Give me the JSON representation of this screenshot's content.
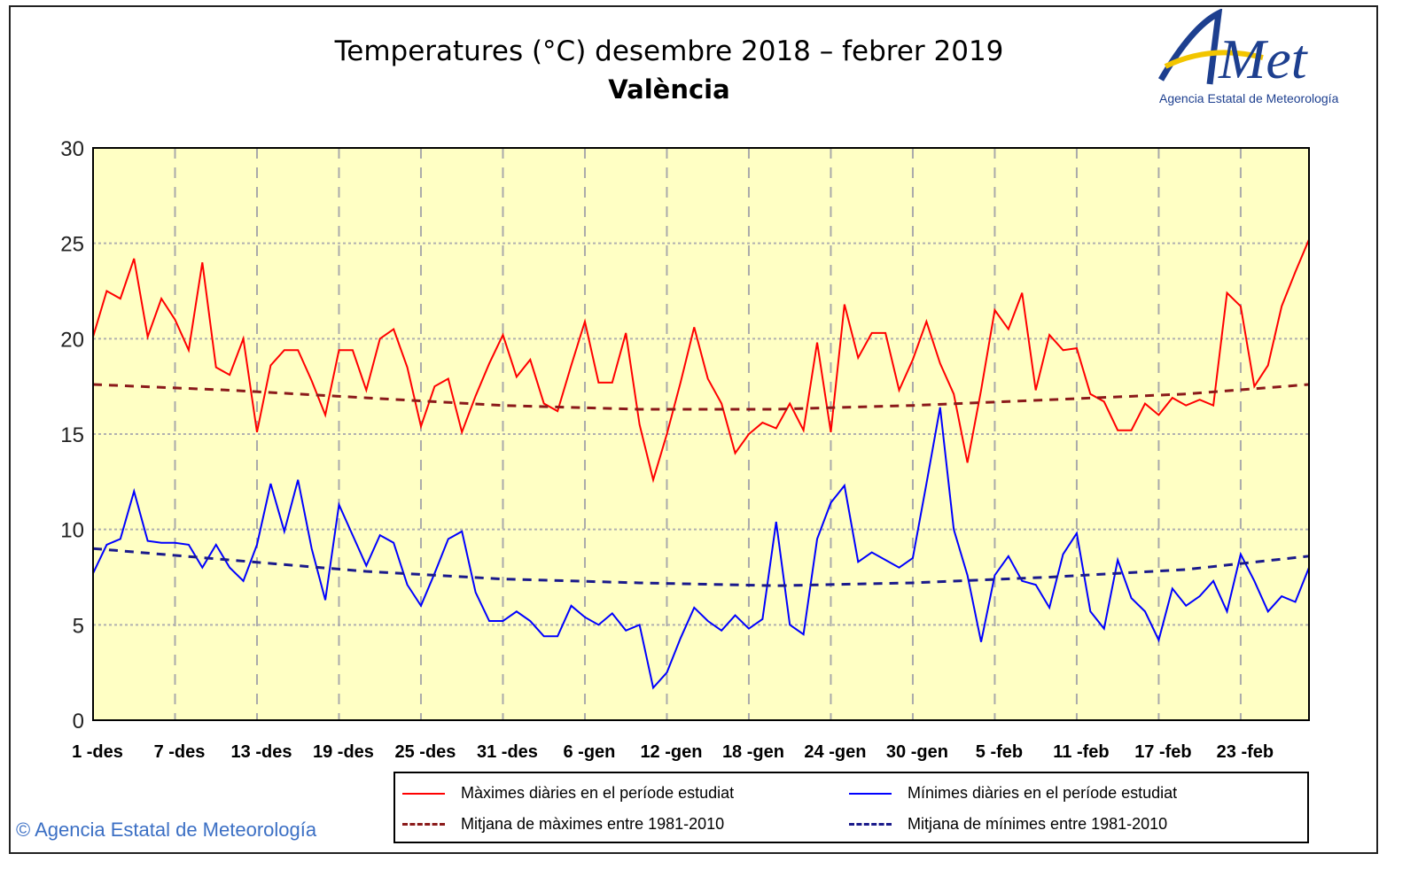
{
  "chart_data": {
    "type": "line",
    "title": "Temperatures (°C) desembre 2018 – febrer 2019",
    "subtitle": "València",
    "xlabel": "",
    "ylabel": "",
    "ylim": [
      0,
      30
    ],
    "yticks": [
      0,
      5,
      10,
      15,
      20,
      25,
      30
    ],
    "x_days": 90,
    "xtick_labels": [
      "1 -des",
      "7 -des",
      "13 -des",
      "19 -des",
      "25 -des",
      "31 -des",
      "6 -gen",
      "12 -gen",
      "18 -gen",
      "24 -gen",
      "30 -gen",
      "5 -feb",
      "11 -feb",
      "17 -feb",
      "23 -feb"
    ],
    "xtick_step_days": 6,
    "grid": true,
    "legend_placement": "bottom",
    "series": [
      {
        "name": "Màximes diàries en el període estudiat",
        "color": "#ff0000",
        "style": "solid",
        "values": [
          20.1,
          22.5,
          22.1,
          24.2,
          20.1,
          22.1,
          21,
          19.4,
          24,
          18.5,
          18.1,
          20,
          15.1,
          18.6,
          19.4,
          19.4,
          17.8,
          16,
          19.4,
          19.4,
          17.3,
          20,
          20.5,
          18.5,
          15.4,
          17.5,
          17.9,
          15.1,
          17,
          18.7,
          20.2,
          18,
          18.9,
          16.6,
          16.2,
          18.6,
          20.9,
          17.7,
          17.7,
          20.3,
          15.5,
          12.6,
          15,
          17.7,
          20.6,
          17.9,
          16.6,
          14,
          15,
          15.6,
          15.3,
          16.6,
          15.2,
          19.8,
          15.1,
          21.8,
          19,
          20.3,
          20.3,
          17.3,
          18.9,
          20.9,
          18.7,
          17.1,
          13.5,
          17.3,
          21.5,
          20.5,
          22.4,
          17.3,
          20.2,
          19.4,
          19.5,
          17.1,
          16.7,
          15.2,
          15.2,
          16.6,
          16,
          16.9,
          16.5,
          16.8,
          16.5,
          22.4,
          21.7,
          17.5,
          18.6,
          21.7,
          23.5,
          25.2
        ]
      },
      {
        "name": "Mínimes diàries en el període estudiat",
        "color": "#0000ff",
        "style": "solid",
        "values": [
          7.7,
          9.2,
          9.5,
          12,
          9.4,
          9.3,
          9.3,
          9.2,
          8,
          9.2,
          8,
          7.3,
          9.2,
          12.4,
          9.9,
          12.6,
          9,
          6.3,
          11.3,
          9.7,
          8.1,
          9.7,
          9.3,
          7.1,
          6,
          7.7,
          9.5,
          9.9,
          6.7,
          5.2,
          5.2,
          5.7,
          5.2,
          4.4,
          4.4,
          6,
          5.4,
          5,
          5.6,
          4.7,
          5,
          1.7,
          2.5,
          4.3,
          5.9,
          5.2,
          4.7,
          5.5,
          4.8,
          5.3,
          10.4,
          5,
          4.5,
          9.5,
          11.4,
          12.3,
          8.3,
          8.8,
          8.4,
          8,
          8.5,
          12.4,
          16.4,
          10,
          7.6,
          4.1,
          7.6,
          8.6,
          7.3,
          7.1,
          5.9,
          8.7,
          9.8,
          5.7,
          4.8,
          8.4,
          6.4,
          5.7,
          4.2,
          6.9,
          6,
          6.5,
          7.3,
          5.7,
          8.7,
          7.3,
          5.7,
          6.5,
          6.2,
          8
        ]
      },
      {
        "name": "Mitjana de màximes entre 1981-2010",
        "color": "#8b1a1a",
        "style": "dashed",
        "points": [
          [
            0,
            17.6
          ],
          [
            10,
            17.3
          ],
          [
            20,
            16.9
          ],
          [
            30,
            16.5
          ],
          [
            40,
            16.3
          ],
          [
            50,
            16.3
          ],
          [
            60,
            16.5
          ],
          [
            70,
            16.8
          ],
          [
            80,
            17.1
          ],
          [
            89,
            17.6
          ]
        ]
      },
      {
        "name": "Mitjana de mínimes entre 1981-2010",
        "color": "#1a1a8b",
        "style": "dashed",
        "points": [
          [
            0,
            9.0
          ],
          [
            10,
            8.4
          ],
          [
            20,
            7.8
          ],
          [
            30,
            7.4
          ],
          [
            40,
            7.2
          ],
          [
            50,
            7.05
          ],
          [
            60,
            7.2
          ],
          [
            70,
            7.5
          ],
          [
            80,
            7.9
          ],
          [
            89,
            8.6
          ]
        ]
      }
    ]
  },
  "logo": {
    "text": "AEMet",
    "subtitle": "Agencia Estatal de Meteorología"
  },
  "copyright": "© Agencia Estatal de Meteorología"
}
